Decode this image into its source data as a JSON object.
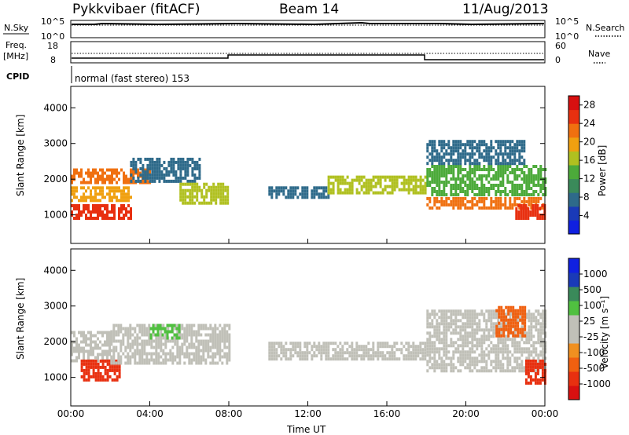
{
  "header": {
    "station": "Pykkvibaer (fitACF)",
    "beam": "Beam 14",
    "date": "11/Aug/2013"
  },
  "top_panels": {
    "nsky_label": "N.Sky",
    "nsky_ticks": [
      "10^5",
      "10^0"
    ],
    "nsearch_label": "N.Search",
    "nsearch_ticks": [
      "10^5",
      "10^0"
    ],
    "freq_label": "Freq.",
    "freq_unit": "[MHz]",
    "freq_ticks": [
      "18",
      "8"
    ],
    "nave_label": "Nave",
    "nave_ticks": [
      "60",
      "0"
    ],
    "cpid_label": "CPID",
    "cpid_text": "normal (fast stereo) 153"
  },
  "colors": {
    "power_scale": [
      "#1020e0",
      "#1a3ab8",
      "#2e6a8a",
      "#3a8a5a",
      "#4caa3a",
      "#b0c020",
      "#f0a010",
      "#f07010",
      "#e83010",
      "#d81010"
    ],
    "velocity_scale": [
      "#1020e0",
      "#1a3ab8",
      "#3a8a5a",
      "#50c040",
      "#c0c0b8",
      "#c0c0b8",
      "#f09020",
      "#f06010",
      "#e83010",
      "#d81010"
    ]
  },
  "chart_data": [
    {
      "type": "heatmap",
      "title": "Power",
      "xlabel": "Time UT",
      "ylabel": "Slant Range [km]",
      "x_ticks": [
        "00:00",
        "04:00",
        "08:00",
        "12:00",
        "16:00",
        "20:00",
        "00:00"
      ],
      "y_ticks": [
        "1000",
        "2000",
        "3000",
        "4000"
      ],
      "ylim": [
        200,
        4600
      ],
      "colorbar": {
        "label": "Power [dB]",
        "ticks": [
          "4",
          "8",
          "12",
          "16",
          "20",
          "24",
          "28"
        ],
        "range": [
          0,
          30
        ]
      },
      "bands": [
        {
          "t0": 0.0,
          "t1": 3.0,
          "r0": 900,
          "r1": 1300,
          "value": 26
        },
        {
          "t0": 0.0,
          "t1": 3.0,
          "r0": 1400,
          "r1": 1800,
          "value": 18
        },
        {
          "t0": 0.0,
          "t1": 4.0,
          "r0": 1900,
          "r1": 2300,
          "value": 21
        },
        {
          "t0": 3.0,
          "t1": 6.5,
          "r0": 1900,
          "r1": 2600,
          "value": 8
        },
        {
          "t0": 5.5,
          "t1": 8.0,
          "r0": 1300,
          "r1": 1900,
          "value": 17
        },
        {
          "t0": 10.0,
          "t1": 13.0,
          "r0": 1500,
          "r1": 1800,
          "value": 6
        },
        {
          "t0": 13.0,
          "t1": 18.0,
          "r0": 1600,
          "r1": 2100,
          "value": 16
        },
        {
          "t0": 18.0,
          "t1": 24.0,
          "r0": 1200,
          "r1": 1500,
          "value": 23
        },
        {
          "t0": 18.0,
          "t1": 24.0,
          "r0": 1600,
          "r1": 2400,
          "value": 13
        },
        {
          "t0": 18.0,
          "t1": 23.0,
          "r0": 2400,
          "r1": 3100,
          "value": 6
        },
        {
          "t0": 22.5,
          "t1": 24.0,
          "r0": 900,
          "r1": 1300,
          "value": 26
        }
      ]
    },
    {
      "type": "heatmap",
      "title": "Velocity",
      "xlabel": "Time UT",
      "ylabel": "Slant Range [km]",
      "x_ticks": [
        "00:00",
        "04:00",
        "08:00",
        "12:00",
        "16:00",
        "20:00",
        "00:00"
      ],
      "y_ticks": [
        "1000",
        "2000",
        "3000",
        "4000"
      ],
      "ylim": [
        200,
        4600
      ],
      "colorbar": {
        "label": "Velocity [m s⁻¹]",
        "ticks": [
          "1000",
          "500",
          "100",
          "25",
          "-25",
          "-100",
          "-500",
          "-1000"
        ]
      },
      "bands": [
        {
          "t0": 0.0,
          "t1": 2.0,
          "r0": 1500,
          "r1": 2300,
          "value": 0
        },
        {
          "t0": 0.5,
          "t1": 2.5,
          "r0": 900,
          "r1": 1500,
          "value": -300
        },
        {
          "t0": 2.0,
          "t1": 8.0,
          "r0": 1400,
          "r1": 2500,
          "value": 0
        },
        {
          "t0": 4.0,
          "t1": 5.5,
          "r0": 2100,
          "r1": 2500,
          "value": 150
        },
        {
          "t0": 10.0,
          "t1": 18.0,
          "r0": 1500,
          "r1": 2000,
          "value": 0
        },
        {
          "t0": 18.0,
          "t1": 24.0,
          "r0": 1200,
          "r1": 2900,
          "value": 0
        },
        {
          "t0": 21.5,
          "t1": 23.0,
          "r0": 2200,
          "r1": 3000,
          "value": -200
        },
        {
          "t0": 23.0,
          "t1": 24.0,
          "r0": 800,
          "r1": 1500,
          "value": -300
        }
      ]
    }
  ]
}
